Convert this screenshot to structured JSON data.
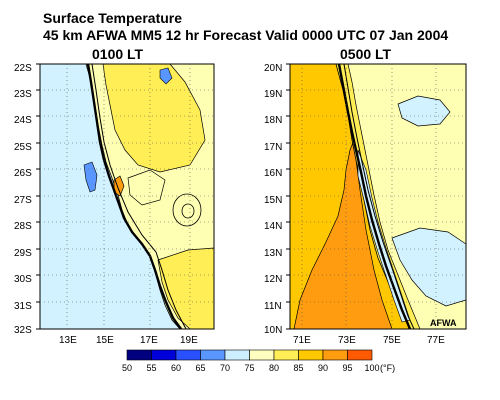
{
  "header": {
    "title": "Surface Temperature",
    "subtitle": "45 km AFWA MM5 12 hr Forecast Valid 0000 UTC  07 Jan 2004"
  },
  "maps": [
    {
      "label": "0100 LT",
      "lat_ticks": [
        "22S",
        "23S",
        "24S",
        "25S",
        "26S",
        "27S",
        "28S",
        "29S",
        "30S",
        "31S",
        "32S"
      ],
      "lon_ticks": [
        "13E",
        "15E",
        "17E",
        "19E"
      ]
    },
    {
      "label": "0500 LT",
      "lat_ticks": [
        "20N",
        "19N",
        "18N",
        "17N",
        "16N",
        "15N",
        "14N",
        "13N",
        "12N",
        "11N",
        "10N"
      ],
      "lon_ticks": [
        "71E",
        "73E",
        "75E",
        "77E"
      ],
      "credit": "AFWA"
    }
  ],
  "legend": {
    "labels": [
      "50",
      "55",
      "60",
      "65",
      "70",
      "75",
      "80",
      "85",
      "90",
      "95",
      "100"
    ],
    "unit": "(°F)",
    "colors": [
      "#000080",
      "#0000d8",
      "#2850ff",
      "#5a96ff",
      "#cceeff",
      "#ffffc0",
      "#ffee55",
      "#ffc800",
      "#ff9c10",
      "#ff5a00",
      "#ff0000"
    ]
  },
  "colors": {
    "cold": "#d2f2ff",
    "cool": "#5a96ff",
    "mild": "#ffffb4",
    "warm": "#ffee55",
    "hot": "#ffc800",
    "hotter": "#ff9c10",
    "coast": "#000000"
  }
}
